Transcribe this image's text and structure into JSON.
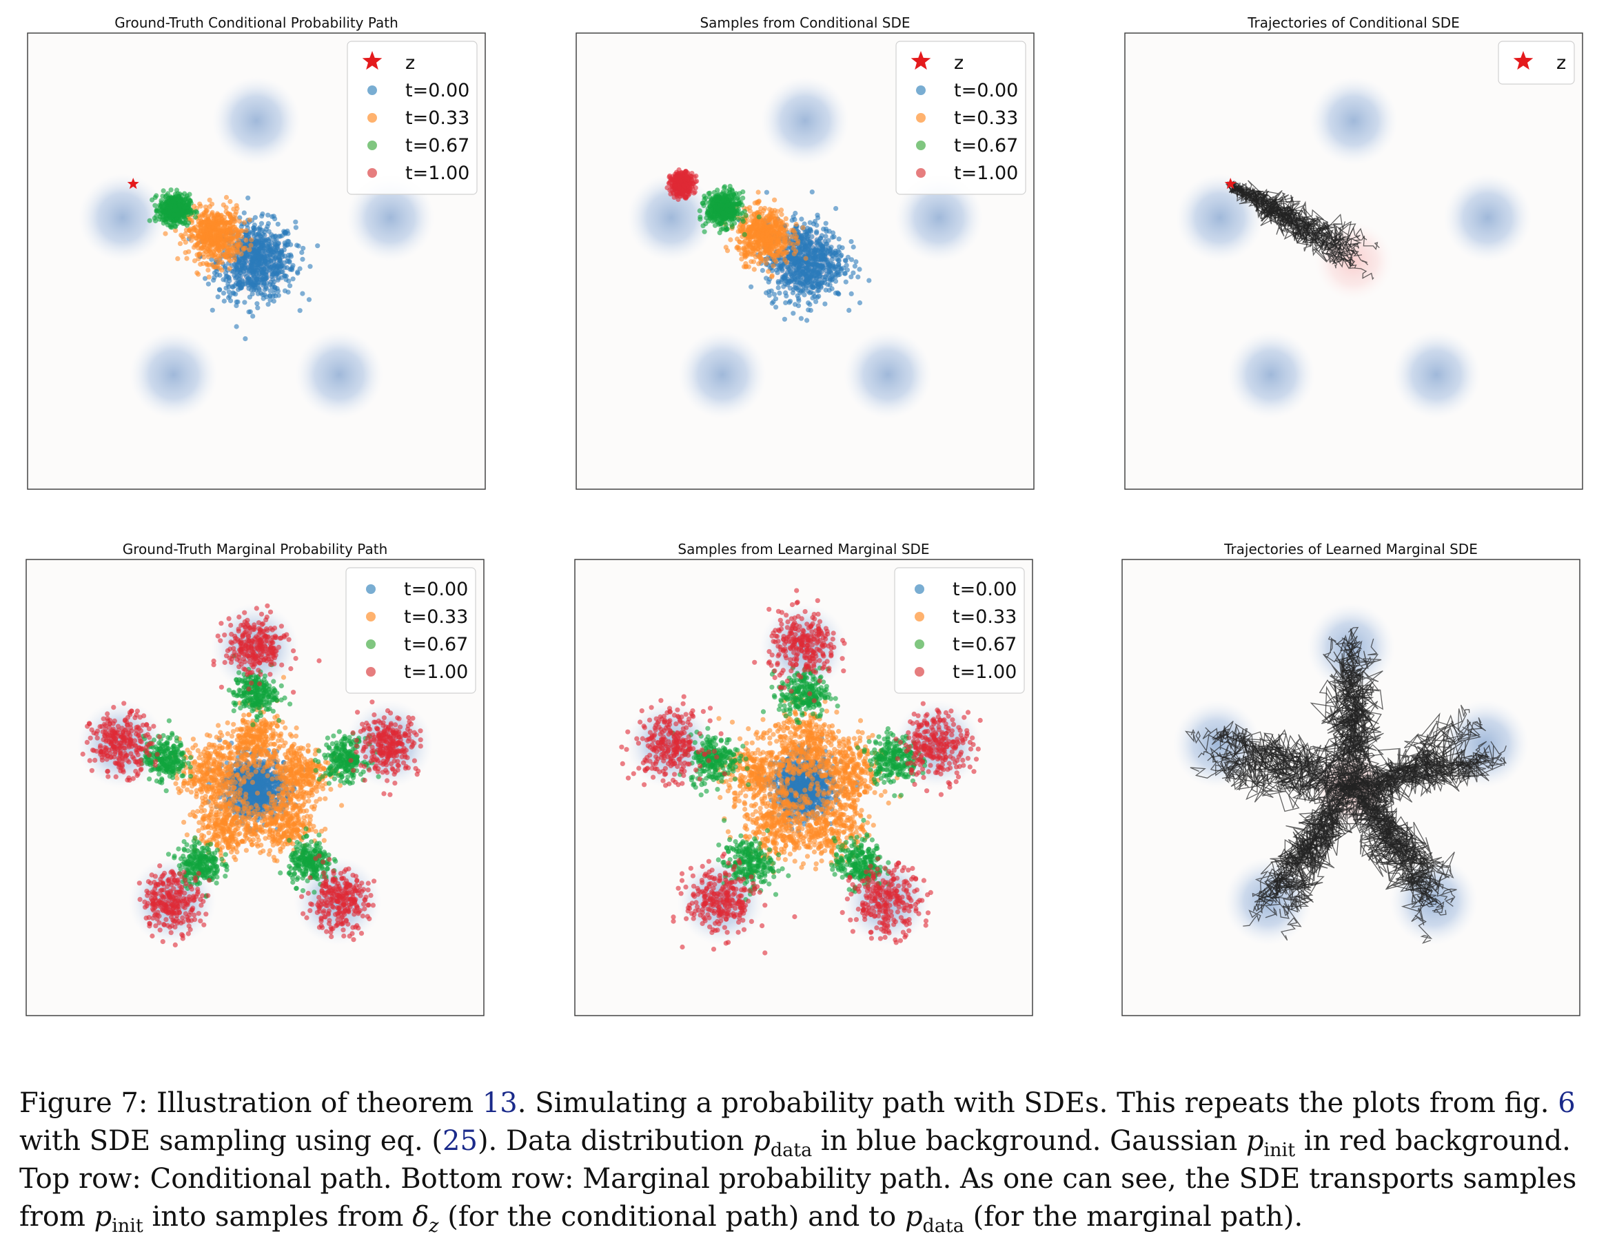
{
  "chart_data": [
    {
      "type": "scatter",
      "title": "Ground-Truth Conditional Probability Path",
      "background": {
        "data_modes": "blue circles on pentagon",
        "init": "red gaussian"
      },
      "legend_placement": "top-right",
      "legend": [
        {
          "label": "z",
          "marker": "star",
          "color": "#e41a1c"
        },
        {
          "label": "t=0.00",
          "marker": "dot",
          "color": "#1f77b4"
        },
        {
          "label": "t=0.33",
          "marker": "dot",
          "color": "#ff7f0e"
        },
        {
          "label": "t=0.67",
          "marker": "dot",
          "color": "#2ca02c"
        },
        {
          "label": "t=1.00",
          "marker": "dot",
          "color": "#d62728"
        }
      ],
      "z": [
        -1.4,
        0.88
      ]
    },
    {
      "type": "scatter",
      "title": "Samples from Conditional SDE",
      "legend_placement": "top-right",
      "legend": [
        {
          "label": "z",
          "marker": "star",
          "color": "#e41a1c"
        },
        {
          "label": "t=0.00",
          "marker": "dot",
          "color": "#1f77b4"
        },
        {
          "label": "t=0.33",
          "marker": "dot",
          "color": "#ff7f0e"
        },
        {
          "label": "t=0.67",
          "marker": "dot",
          "color": "#2ca02c"
        },
        {
          "label": "t=1.00",
          "marker": "dot",
          "color": "#d62728"
        }
      ],
      "z": [
        -1.4,
        0.88
      ]
    },
    {
      "type": "line",
      "title": "Trajectories of Conditional SDE",
      "legend_placement": "top-right",
      "legend": [
        {
          "label": "z",
          "marker": "star",
          "color": "#e41a1c"
        }
      ],
      "z": [
        -1.4,
        0.88
      ]
    },
    {
      "type": "scatter",
      "title": "Ground-Truth Marginal Probability Path",
      "legend_placement": "top-right",
      "legend": [
        {
          "label": "t=0.00",
          "marker": "dot",
          "color": "#1f77b4"
        },
        {
          "label": "t=0.33",
          "marker": "dot",
          "color": "#ff7f0e"
        },
        {
          "label": "t=0.67",
          "marker": "dot",
          "color": "#2ca02c"
        },
        {
          "label": "t=1.00",
          "marker": "dot",
          "color": "#d62728"
        }
      ]
    },
    {
      "type": "scatter",
      "title": "Samples from Learned Marginal SDE",
      "legend_placement": "top-right",
      "legend": [
        {
          "label": "t=0.00",
          "marker": "dot",
          "color": "#1f77b4"
        },
        {
          "label": "t=0.33",
          "marker": "dot",
          "color": "#ff7f0e"
        },
        {
          "label": "t=0.67",
          "marker": "dot",
          "color": "#2ca02c"
        },
        {
          "label": "t=1.00",
          "marker": "dot",
          "color": "#d62728"
        }
      ]
    },
    {
      "type": "line",
      "title": "Trajectories of Learned Marginal SDE",
      "legend_placement": "none",
      "legend": []
    }
  ],
  "caption": {
    "label": "Figure 7:",
    "s1": "Illustration of theorem",
    "ref_theorem": "13",
    "s2": ". Simulating a probability path with SDEs. This repeats the plots from fig.",
    "ref_fig": "6",
    "s3": "with SDE sampling using eq. (",
    "ref_eq": "25",
    "s4": "). Data distribution",
    "p": "p",
    "sub_data": "data",
    "s5": "in blue background. Gaussian",
    "sub_init": "init",
    "s6": "in red background. Top row: Conditional path. Bottom row: Marginal probability path. As one can see, the SDE transports samples from",
    "s7": "into samples from",
    "delta": "δ",
    "sub_z": "z",
    "s8": "(for the conditional path) and to",
    "s9": "(for the marginal path)."
  }
}
